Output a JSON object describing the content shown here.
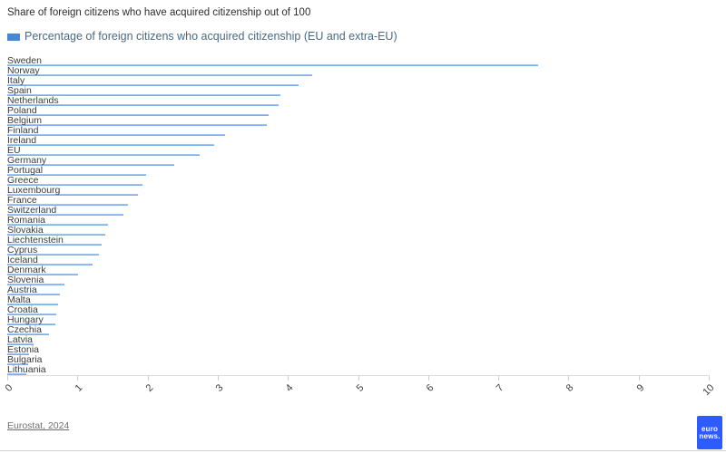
{
  "title": "Share of foreign citizens who have acquired citizenship out of 100",
  "legend": {
    "label": "Percentage of foreign citizens who acquired citizenship (EU and extra-EU)",
    "swatch_color": "#4589d3"
  },
  "source": {
    "label": "Eurostat, 2024"
  },
  "logo": {
    "line1": "euro",
    "line2": "news.",
    "bg_color": "#2e5bfe"
  },
  "chart_data": {
    "type": "bar",
    "orientation": "horizontal",
    "title": "Share of foreign citizens who have acquired citizenship out of 100",
    "legend_entries": [
      "Percentage of foreign citizens who acquired citizenship (EU and extra-EU)"
    ],
    "legend_position": "top",
    "xlabel": "",
    "ylabel": "",
    "xlim": [
      0,
      10
    ],
    "xticks": [
      0,
      1,
      2,
      3,
      4,
      5,
      6,
      7,
      8,
      9,
      10
    ],
    "grid": false,
    "bar_color": "#7aacf1",
    "categories": [
      "Sweden",
      "Norway",
      "Italy",
      "Spain",
      "Netherlands",
      "Poland",
      "Belgium",
      "Finland",
      "Ireland",
      "EU",
      "Germany",
      "Portugal",
      "Greece",
      "Luxembourg",
      "France",
      "Switzerland",
      "Romania",
      "Slovakia",
      "Liechtenstein",
      "Cyprus",
      "Iceland",
      "Denmark",
      "Slovenia",
      "Austria",
      "Malta",
      "Croatia",
      "Hungary",
      "Czechia",
      "Latvia",
      "Estonia",
      "Bulgaria",
      "Lithuania"
    ],
    "values": [
      7.57,
      4.35,
      4.15,
      3.9,
      3.87,
      3.73,
      3.7,
      3.1,
      2.95,
      2.74,
      2.38,
      1.98,
      1.93,
      1.86,
      1.72,
      1.66,
      1.43,
      1.4,
      1.34,
      1.31,
      1.22,
      1.01,
      0.82,
      0.75,
      0.72,
      0.7,
      0.68,
      0.6,
      0.37,
      0.31,
      0.3,
      0.27
    ]
  }
}
